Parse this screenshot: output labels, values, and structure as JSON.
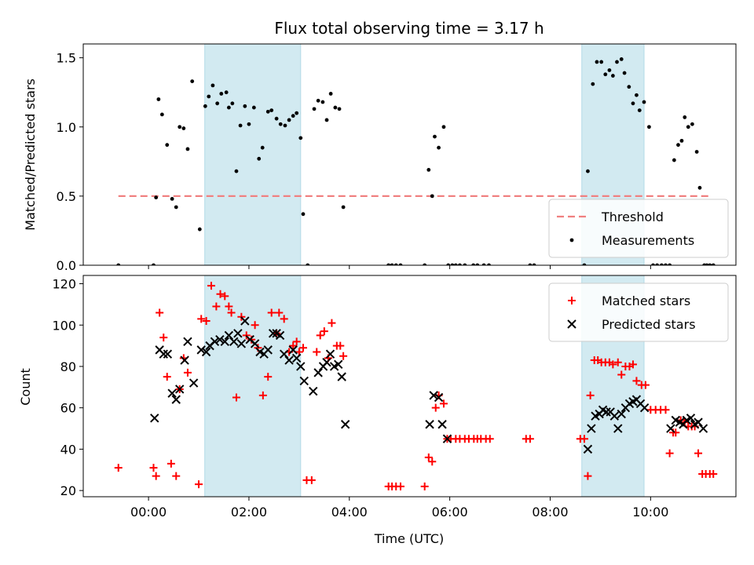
{
  "chart_data": [
    {
      "type": "scatter",
      "title": "Flux total observing time = 3.17 h",
      "xlabel": "",
      "ylabel": "Matched/Predicted stars",
      "xlim": [
        -1.3,
        11.7
      ],
      "ylim": [
        0,
        1.6
      ],
      "xtick_hours": [
        0,
        2,
        4,
        6,
        8,
        10
      ],
      "yticks": [
        0.0,
        0.5,
        1.0,
        1.5
      ],
      "ytick_labels": [
        "0.0",
        "0.5",
        "1.0",
        "1.5"
      ],
      "shaded_hours": [
        [
          1.12,
          3.03
        ],
        [
          8.63,
          9.87
        ]
      ],
      "shade_color": "#add8e6",
      "legend_position": "lower-right",
      "threshold": {
        "name": "Threshold",
        "value": 0.5,
        "x_start": -0.6,
        "x_end": 11.2,
        "color": "#f08080"
      },
      "series": [
        {
          "name": "Measurements",
          "color": "#000000",
          "x": [
            -0.6,
            0.1,
            0.15,
            0.2,
            0.27,
            0.37,
            0.47,
            0.55,
            0.62,
            0.7,
            0.78,
            0.87,
            1.02,
            1.13,
            1.2,
            1.28,
            1.37,
            1.45,
            1.55,
            1.6,
            1.67,
            1.75,
            1.83,
            1.92,
            2.0,
            2.1,
            2.2,
            2.27,
            2.38,
            2.45,
            2.55,
            2.63,
            2.72,
            2.8,
            2.88,
            2.95,
            3.03,
            3.08,
            3.17,
            3.3,
            3.38,
            3.47,
            3.55,
            3.63,
            3.72,
            3.8,
            3.88,
            4.78,
            4.85,
            4.93,
            5.02,
            5.5,
            5.58,
            5.65,
            5.7,
            5.78,
            5.88,
            5.97,
            6.05,
            6.12,
            6.2,
            6.3,
            6.47,
            6.55,
            6.68,
            6.78,
            7.6,
            7.68,
            8.68,
            8.75,
            8.85,
            8.93,
            9.02,
            9.1,
            9.18,
            9.25,
            9.33,
            9.42,
            9.48,
            9.57,
            9.65,
            9.72,
            9.78,
            9.87,
            9.97,
            10.05,
            10.13,
            10.22,
            10.3,
            10.38,
            10.47,
            10.55,
            10.62,
            10.68,
            10.75,
            10.83,
            10.92,
            10.98,
            11.07,
            11.12,
            11.18,
            11.25
          ],
          "y": [
            0.0,
            0.0,
            0.49,
            1.2,
            1.09,
            0.87,
            0.48,
            0.42,
            1.0,
            0.99,
            0.84,
            1.33,
            0.26,
            1.15,
            1.22,
            1.3,
            1.17,
            1.24,
            1.25,
            1.14,
            1.17,
            0.68,
            1.01,
            1.15,
            1.02,
            1.14,
            0.77,
            0.85,
            1.11,
            1.12,
            1.06,
            1.02,
            1.01,
            1.05,
            1.08,
            1.1,
            0.92,
            0.37,
            0.0,
            1.13,
            1.19,
            1.18,
            1.05,
            1.24,
            1.14,
            1.13,
            0.42,
            0.0,
            0.0,
            0.0,
            0.0,
            0.0,
            0.69,
            0.5,
            0.93,
            0.85,
            1.0,
            0.0,
            0.0,
            0.0,
            0.0,
            0.0,
            0.0,
            0.0,
            0.0,
            0.0,
            0.0,
            0.0,
            0.0,
            0.68,
            1.31,
            1.47,
            1.47,
            1.38,
            1.41,
            1.37,
            1.47,
            1.49,
            1.39,
            1.29,
            1.17,
            1.23,
            1.12,
            1.18,
            1.0,
            0.0,
            0.0,
            0.0,
            0.0,
            0.0,
            0.76,
            0.87,
            0.9,
            1.07,
            1.0,
            1.02,
            0.82,
            0.56,
            0.0,
            0.0,
            0.0,
            0.0
          ]
        }
      ]
    },
    {
      "type": "scatter",
      "title": "",
      "xlabel": "Time (UTC)",
      "ylabel": "Count",
      "xlim": [
        -1.3,
        11.7
      ],
      "ylim": [
        17,
        124
      ],
      "xtick_hours": [
        0,
        2,
        4,
        6,
        8,
        10
      ],
      "xtick_labels": [
        "00:00",
        "02:00",
        "04:00",
        "06:00",
        "08:00",
        "10:00"
      ],
      "yticks": [
        20,
        40,
        60,
        80,
        100,
        120
      ],
      "ytick_labels": [
        "20",
        "40",
        "60",
        "80",
        "100",
        "120"
      ],
      "shaded_hours": [
        [
          1.12,
          3.03
        ],
        [
          8.63,
          9.87
        ]
      ],
      "shade_color": "#add8e6",
      "legend_position": "upper-right",
      "series": [
        {
          "name": "Matched stars",
          "marker": "plus",
          "color": "#ff0000",
          "x": [
            -0.6,
            0.1,
            0.15,
            0.22,
            0.3,
            0.37,
            0.45,
            0.55,
            0.62,
            0.7,
            0.78,
            1.0,
            1.05,
            1.15,
            1.25,
            1.35,
            1.43,
            1.52,
            1.6,
            1.65,
            1.75,
            1.85,
            1.95,
            2.05,
            2.12,
            2.18,
            2.28,
            2.38,
            2.45,
            2.55,
            2.6,
            2.7,
            2.8,
            2.88,
            2.95,
            3.0,
            3.08,
            3.15,
            3.25,
            3.35,
            3.42,
            3.5,
            3.58,
            3.65,
            3.75,
            3.82,
            3.88,
            4.78,
            4.85,
            4.93,
            5.02,
            5.5,
            5.58,
            5.65,
            5.72,
            5.78,
            5.88,
            5.95,
            6.02,
            6.12,
            6.2,
            6.3,
            6.38,
            6.48,
            6.55,
            6.62,
            6.72,
            6.8,
            7.52,
            7.6,
            8.6,
            8.68,
            8.75,
            8.8,
            8.88,
            8.95,
            9.02,
            9.1,
            9.18,
            9.25,
            9.35,
            9.42,
            9.5,
            9.58,
            9.65,
            9.72,
            9.82,
            9.9,
            10.0,
            10.1,
            10.2,
            10.3,
            10.38,
            10.45,
            10.5,
            10.6,
            10.68,
            10.75,
            10.82,
            10.88,
            10.95,
            11.03,
            11.1,
            11.18,
            11.25
          ],
          "y": [
            31,
            31,
            27,
            106,
            94,
            75,
            33,
            27,
            69,
            84,
            77,
            23,
            103,
            102,
            119,
            109,
            115,
            114,
            109,
            106,
            65,
            104,
            95,
            93,
            100,
            89,
            66,
            75,
            106,
            96,
            106,
            103,
            87,
            90,
            92,
            87,
            89,
            25,
            25,
            87,
            95,
            97,
            84,
            101,
            90,
            90,
            85,
            22,
            22,
            22,
            22,
            22,
            36,
            34,
            60,
            66,
            62,
            45,
            45,
            45,
            45,
            45,
            45,
            45,
            45,
            45,
            45,
            45,
            45,
            45,
            45,
            45,
            27,
            66,
            83,
            83,
            82,
            82,
            82,
            81,
            82,
            76,
            80,
            80,
            81,
            73,
            71,
            71,
            59,
            59,
            59,
            59,
            38,
            48,
            48,
            54,
            53,
            51,
            51,
            51,
            38,
            28,
            28,
            28,
            28
          ]
        },
        {
          "name": "Predicted stars",
          "marker": "x",
          "color": "#000000",
          "x": [
            0.12,
            0.22,
            0.3,
            0.38,
            0.47,
            0.55,
            0.62,
            0.72,
            0.78,
            0.9,
            1.05,
            1.15,
            1.22,
            1.32,
            1.42,
            1.52,
            1.6,
            1.7,
            1.78,
            1.85,
            1.92,
            2.02,
            2.12,
            2.22,
            2.3,
            2.38,
            2.48,
            2.55,
            2.62,
            2.7,
            2.8,
            2.88,
            2.95,
            3.03,
            3.1,
            3.28,
            3.38,
            3.48,
            3.55,
            3.62,
            3.7,
            3.78,
            3.85,
            3.92,
            5.6,
            5.68,
            5.78,
            5.85,
            5.95,
            8.75,
            8.82,
            8.9,
            8.98,
            9.05,
            9.12,
            9.2,
            9.28,
            9.35,
            9.42,
            9.5,
            9.58,
            9.65,
            9.72,
            9.8,
            9.88,
            10.4,
            10.5,
            10.58,
            10.65,
            10.72,
            10.8,
            10.88,
            10.95,
            11.05
          ],
          "y": [
            55,
            88,
            86,
            86,
            67,
            64,
            69,
            83,
            92,
            72,
            88,
            87,
            90,
            92,
            93,
            92,
            95,
            92,
            96,
            91,
            102,
            93,
            91,
            87,
            86,
            88,
            96,
            96,
            95,
            86,
            83,
            88,
            84,
            80,
            73,
            68,
            77,
            80,
            82,
            86,
            80,
            81,
            75,
            52,
            52,
            66,
            65,
            52,
            45,
            40,
            50,
            56,
            57,
            59,
            58,
            58,
            56,
            50,
            57,
            60,
            62,
            63,
            64,
            62,
            60,
            50,
            54,
            53,
            52,
            54,
            55,
            52,
            53,
            50
          ]
        }
      ]
    }
  ]
}
